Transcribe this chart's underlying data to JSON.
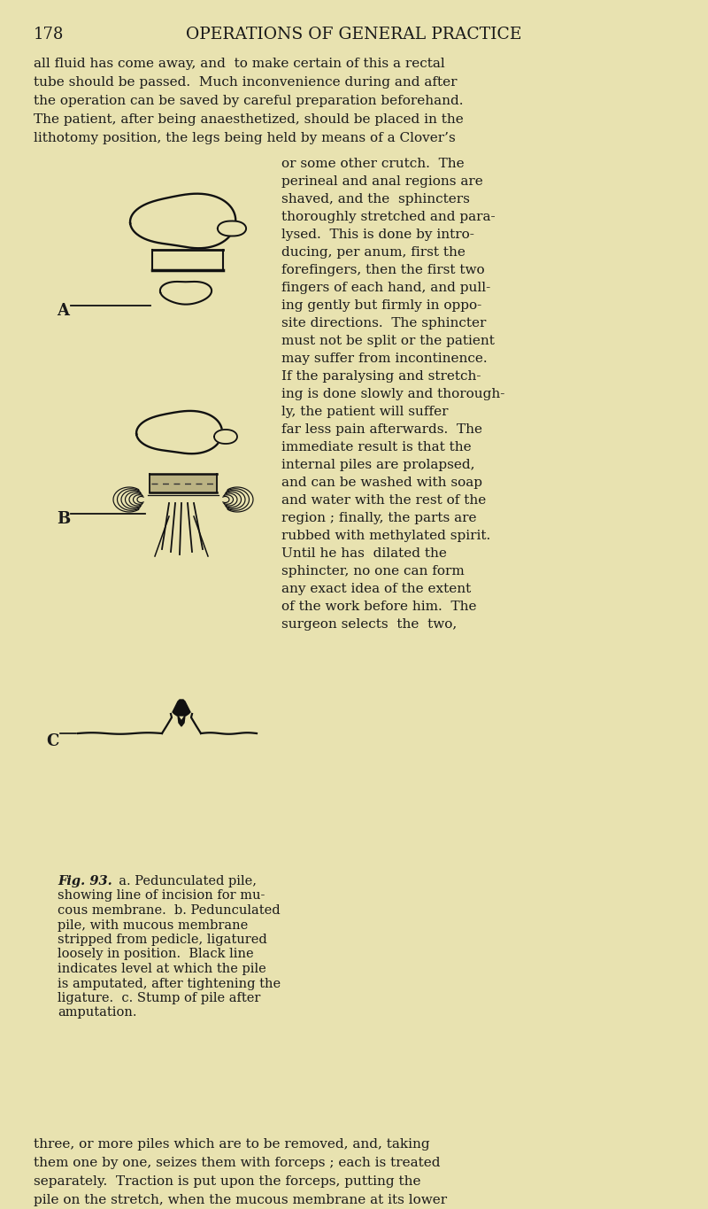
{
  "bg_color": "#e8e2b0",
  "text_color": "#1a1a1a",
  "page_number": "178",
  "header": "OPERATIONS OF GENERAL PRACTICE",
  "body_text_top": [
    "all fluid has come away, and  to make certain of this a rectal",
    "tube should be passed.  Much inconvenience during and after",
    "the operation can be saved by careful preparation beforehand.",
    "The patient, after being anaesthetized, should be placed in the",
    "lithotomy position, the legs being held by means of a Clover’s"
  ],
  "col_right_lines": [
    "or some other crutch.  The",
    "perineal and anal regions are",
    "shaved, and the  sphincters",
    "thoroughly stretched and para-",
    "lysed.  This is done by intro-",
    "ducing, per anum, first the",
    "forefingers, then the first two",
    "fingers of each hand, and pull-",
    "ing gently but firmly in oppo-",
    "site directions.  The sphincter",
    "must not be split or the patient",
    "may suffer from incontinence.",
    "If the paralysing and stretch-",
    "ing is done slowly and thorough-",
    "ly, the patient will suffer",
    "far less pain afterwards.  The",
    "immediate result is that the",
    "internal piles are prolapsed,",
    "and can be washed with soap",
    "and water with the rest of the",
    "region ; finally, the parts are",
    "rubbed with methylated spirit.",
    "Until he has  dilated the",
    "sphincter, no one can form",
    "any exact idea of the extent",
    "of the work before him.  The",
    "surgeon selects  the  two,"
  ],
  "caption_lines": [
    "Fig. 93.  a. Pedunculated pile,",
    "showing line of incision for mu-",
    "cous membrane.  b. Pedunculated",
    "pile, with mucous membrane",
    "stripped from pedicle, ligatured",
    "loosely in position.  Black line",
    "indicates level at which the pile",
    "is amputated, after tightening the",
    "ligature.  c. Stump of pile after",
    "amputation."
  ],
  "body_text_bottom": [
    "three, or more piles which are to be removed, and, taking",
    "them one by one, seizes them with forceps ; each is treated",
    "separately.  Traction is put upon the forceps, putting the",
    "pile on the stretch, when the mucous membrane at its lower"
  ]
}
